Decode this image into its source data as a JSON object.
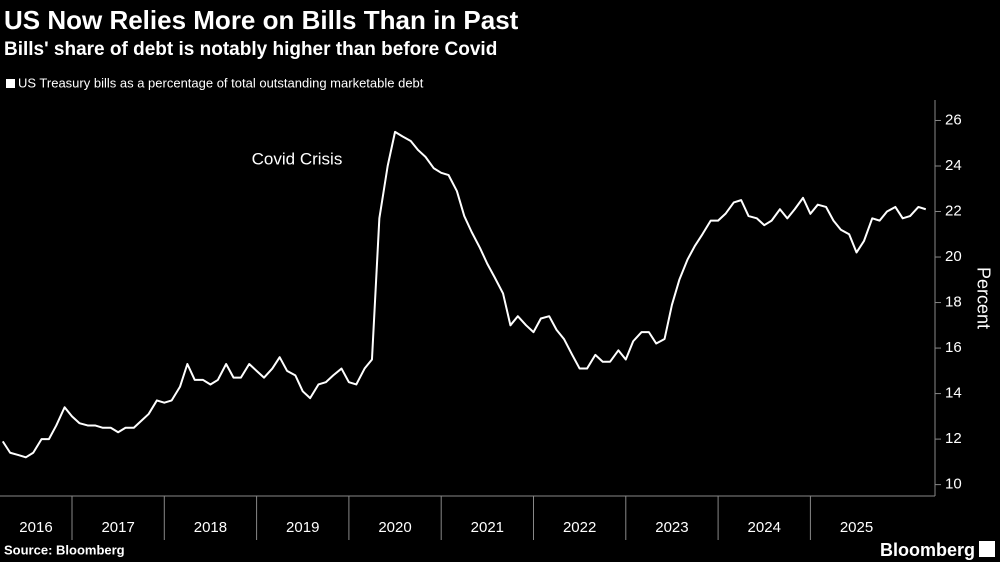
{
  "chart_data": {
    "type": "line",
    "title": "US Now Relies More on Bills Than in Past",
    "subtitle": "Bills' share of debt is notably higher than before Covid",
    "annotation": "Covid Crisis",
    "y_label": "Percent",
    "source": "Source: Bloomberg",
    "brand": "Bloomberg",
    "background": "#000000",
    "x": [
      2016.25,
      2016.33,
      2016.42,
      2016.5,
      2016.58,
      2016.67,
      2016.75,
      2016.83,
      2016.92,
      2017,
      2017.08,
      2017.17,
      2017.25,
      2017.33,
      2017.42,
      2017.5,
      2017.58,
      2017.67,
      2017.75,
      2017.83,
      2017.92,
      2018,
      2018.08,
      2018.17,
      2018.25,
      2018.33,
      2018.42,
      2018.5,
      2018.58,
      2018.67,
      2018.75,
      2018.83,
      2018.92,
      2019,
      2019.08,
      2019.17,
      2019.25,
      2019.33,
      2019.42,
      2019.5,
      2019.58,
      2019.67,
      2019.75,
      2019.83,
      2019.92,
      2020,
      2020.08,
      2020.17,
      2020.25,
      2020.33,
      2020.42,
      2020.5,
      2020.58,
      2020.67,
      2020.75,
      2020.83,
      2020.92,
      2021,
      2021.08,
      2021.17,
      2021.25,
      2021.33,
      2021.42,
      2021.5,
      2021.58,
      2021.67,
      2021.75,
      2021.83,
      2021.92,
      2022,
      2022.08,
      2022.17,
      2022.25,
      2022.33,
      2022.42,
      2022.5,
      2022.58,
      2022.67,
      2022.75,
      2022.83,
      2022.92,
      2023,
      2023.08,
      2023.17,
      2023.25,
      2023.33,
      2023.42,
      2023.5,
      2023.58,
      2023.67,
      2023.75,
      2023.83,
      2023.92,
      2024,
      2024.08,
      2024.17,
      2024.25,
      2024.33,
      2024.42,
      2024.5,
      2024.58,
      2024.67,
      2024.75,
      2024.83,
      2024.92,
      2025,
      2025.08,
      2025.17,
      2025.25,
      2025.33,
      2025.42,
      2025.5,
      2025.58,
      2025.67,
      2025.75,
      2025.83,
      2025.92,
      2026,
      2026.08,
      2026.17,
      2026.25
    ],
    "series": [
      {
        "name": "US Treasury bills as a percentage of total outstanding marketable debt",
        "color": "#ffffff",
        "values": [
          11.9,
          11.4,
          11.3,
          11.2,
          11.4,
          12.0,
          12.0,
          12.6,
          13.4,
          13.0,
          12.7,
          12.6,
          12.6,
          12.5,
          12.5,
          12.3,
          12.5,
          12.5,
          12.8,
          13.1,
          13.7,
          13.6,
          13.7,
          14.3,
          15.3,
          14.6,
          14.6,
          14.4,
          14.6,
          15.3,
          14.7,
          14.7,
          15.3,
          15.0,
          14.7,
          15.1,
          15.6,
          15.0,
          14.8,
          14.1,
          13.8,
          14.4,
          14.5,
          14.8,
          15.1,
          14.5,
          14.4,
          15.1,
          15.5,
          21.7,
          24.0,
          25.5,
          25.3,
          25.1,
          24.7,
          24.4,
          23.9,
          23.7,
          23.6,
          22.9,
          21.8,
          21.1,
          20.4,
          19.7,
          19.1,
          18.4,
          17.0,
          17.4,
          17.0,
          16.7,
          17.3,
          17.4,
          16.8,
          16.4,
          15.7,
          15.1,
          15.1,
          15.7,
          15.4,
          15.4,
          15.9,
          15.5,
          16.3,
          16.7,
          16.7,
          16.2,
          16.4,
          17.9,
          19.0,
          19.9,
          20.5,
          21.0,
          21.6,
          21.6,
          21.9,
          22.4,
          22.5,
          21.8,
          21.7,
          21.4,
          21.6,
          22.1,
          21.7,
          22.1,
          22.6,
          21.9,
          22.3,
          22.2,
          21.6,
          21.2,
          21.0,
          20.2,
          20.7,
          21.7,
          21.6,
          22.0,
          22.2,
          21.7,
          21.8,
          22.2,
          22.1
        ]
      }
    ],
    "xlim": [
      2016.22,
      2026.35
    ],
    "xticks": [
      2016,
      2017,
      2018,
      2019,
      2020,
      2021,
      2022,
      2023,
      2024,
      2025
    ],
    "ylim": [
      9.5,
      26.9
    ],
    "yticks": [
      10,
      12,
      14,
      16,
      18,
      20,
      22,
      24,
      26
    ],
    "grid": false
  }
}
